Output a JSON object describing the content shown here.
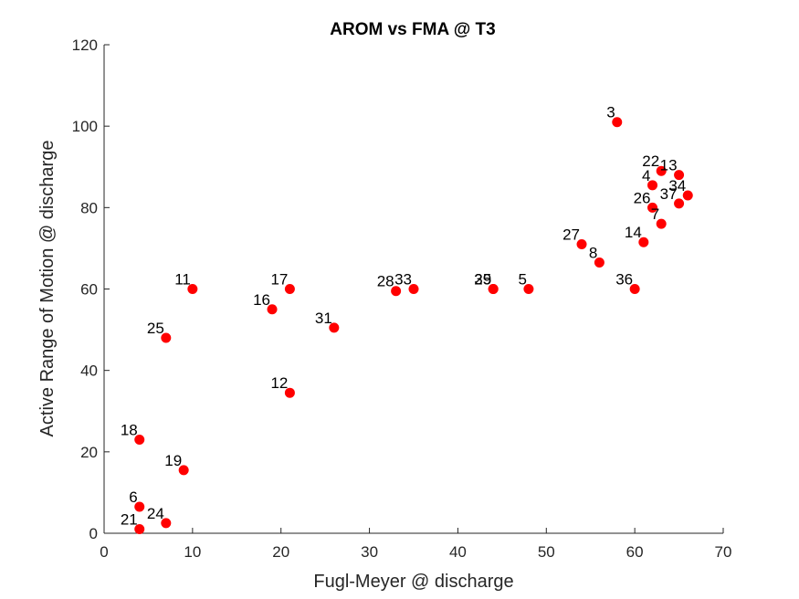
{
  "chart_data": {
    "type": "scatter",
    "title": "AROM vs FMA @ T3",
    "xlabel": "Fugl-Meyer @ discharge",
    "ylabel": "Active Range of Motion @ discharge",
    "xlim": [
      0,
      70
    ],
    "ylim": [
      0,
      120
    ],
    "xticks": [
      0,
      10,
      20,
      30,
      40,
      50,
      60,
      70
    ],
    "yticks": [
      0,
      20,
      40,
      60,
      80,
      100,
      120
    ],
    "grid": false,
    "marker_color": "#ff0000",
    "points": [
      {
        "label": "3",
        "x": 58,
        "y": 101
      },
      {
        "label": "22",
        "x": 63,
        "y": 89
      },
      {
        "label": "13",
        "x": 65,
        "y": 88
      },
      {
        "label": "4",
        "x": 62,
        "y": 85.5
      },
      {
        "label": "26",
        "x": 62,
        "y": 80
      },
      {
        "label": "37",
        "x": 65,
        "y": 81
      },
      {
        "label": "34",
        "x": 66,
        "y": 83
      },
      {
        "label": "7",
        "x": 63,
        "y": 76
      },
      {
        "label": "14",
        "x": 61,
        "y": 71.5
      },
      {
        "label": "27",
        "x": 54,
        "y": 71
      },
      {
        "label": "8",
        "x": 56,
        "y": 66.5
      },
      {
        "label": "36",
        "x": 60,
        "y": 60
      },
      {
        "label": "5",
        "x": 48,
        "y": 60
      },
      {
        "label": "35",
        "x": 44,
        "y": 60
      },
      {
        "label": "29",
        "x": 44,
        "y": 60
      },
      {
        "label": "33",
        "x": 35,
        "y": 60
      },
      {
        "label": "28",
        "x": 33,
        "y": 59.5
      },
      {
        "label": "17",
        "x": 21,
        "y": 60
      },
      {
        "label": "16",
        "x": 19,
        "y": 55
      },
      {
        "label": "11",
        "x": 10,
        "y": 60
      },
      {
        "label": "31",
        "x": 26,
        "y": 50.5
      },
      {
        "label": "25",
        "x": 7,
        "y": 48
      },
      {
        "label": "12",
        "x": 21,
        "y": 34.5
      },
      {
        "label": "18",
        "x": 4,
        "y": 23
      },
      {
        "label": "19",
        "x": 9,
        "y": 15.5
      },
      {
        "label": "6",
        "x": 4,
        "y": 6.5
      },
      {
        "label": "24",
        "x": 7,
        "y": 2.5
      },
      {
        "label": "21",
        "x": 4,
        "y": 1
      }
    ]
  }
}
